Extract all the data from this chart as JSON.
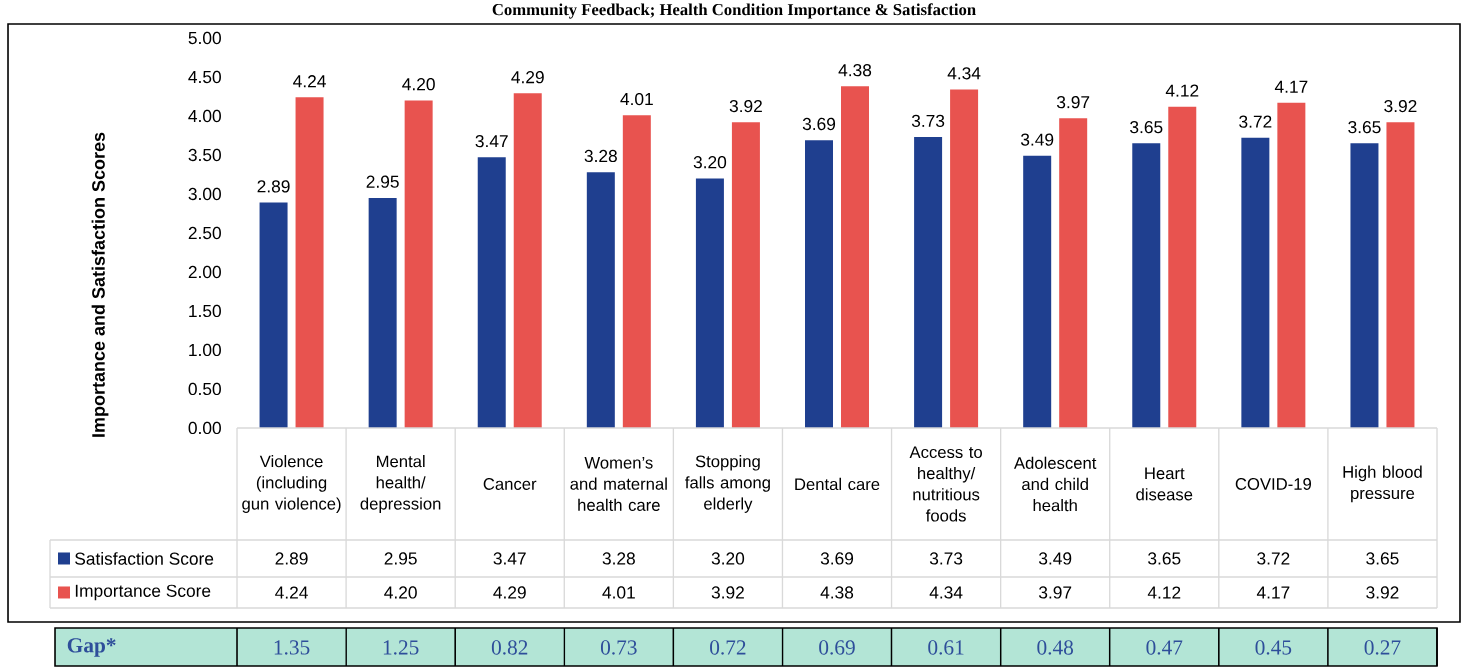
{
  "chart_data": {
    "type": "bar",
    "title": "Community Feedback; Health Condition Importance & Satisfaction",
    "ylabel": "Importance and Satisfaction Scores",
    "categories": [
      "Violence (including gun violence)",
      "Mental health/depression",
      "Cancer",
      "Women’s and maternal health care",
      "Stopping falls among elderly",
      "Dental care",
      "Access to healthy/nutritious foods",
      "Adolescent and child health",
      "Heart disease",
      "COVID-19",
      "High blood pressure"
    ],
    "series": [
      {
        "name": "Satisfaction Score",
        "color": "#1f3f8f",
        "values": [
          2.89,
          2.95,
          3.47,
          3.28,
          3.2,
          3.69,
          3.73,
          3.49,
          3.65,
          3.72,
          3.65
        ],
        "value_labels": [
          "2.89",
          "2.95",
          "3.47",
          "3.28",
          "3.20",
          "3.69",
          "3.73",
          "3.49",
          "3.65",
          "3.72",
          "3.65"
        ]
      },
      {
        "name": "Importance Score",
        "color": "#e8534f",
        "values": [
          4.24,
          4.2,
          4.29,
          4.01,
          3.92,
          4.38,
          4.34,
          3.97,
          4.12,
          4.17,
          3.92
        ],
        "value_labels": [
          "4.24",
          "4.20",
          "4.29",
          "4.01",
          "3.92",
          "4.38",
          "4.34",
          "3.97",
          "4.12",
          "4.17",
          "3.92"
        ]
      }
    ],
    "ylim": [
      0,
      5
    ],
    "yticks": [
      {
        "value": 0,
        "label": "0.00"
      },
      {
        "value": 0.5,
        "label": "0.50"
      },
      {
        "value": 1,
        "label": "1.00"
      },
      {
        "value": 1.5,
        "label": "1.50"
      },
      {
        "value": 2,
        "label": "2.00"
      },
      {
        "value": 2.5,
        "label": "2.50"
      },
      {
        "value": 3,
        "label": "3.00"
      },
      {
        "value": 3.5,
        "label": "3.50"
      },
      {
        "value": 4,
        "label": "4.00"
      },
      {
        "value": 4.5,
        "label": "4.50"
      },
      {
        "value": 5,
        "label": "5.00"
      }
    ],
    "grid": false,
    "legend": "bottom",
    "annotations": [
      "Gap*",
      "1.35",
      "1.25",
      "0.82",
      "0.73",
      "0.72",
      "0.69",
      "0.61",
      "0.48",
      "0.47",
      "0.45",
      "0.27"
    ]
  }
}
